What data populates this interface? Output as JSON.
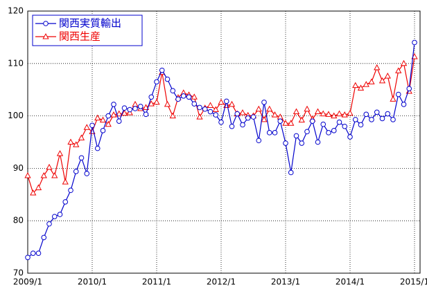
{
  "chart_data": {
    "type": "line",
    "categories": [
      "2009/1",
      null,
      null,
      null,
      null,
      null,
      null,
      null,
      null,
      null,
      null,
      null,
      "2010/1",
      null,
      null,
      null,
      null,
      null,
      null,
      null,
      null,
      null,
      null,
      null,
      "2011/1",
      null,
      null,
      null,
      null,
      null,
      null,
      null,
      null,
      null,
      null,
      null,
      "2012/1",
      null,
      null,
      null,
      null,
      null,
      null,
      null,
      null,
      null,
      null,
      null,
      "2013/1",
      null,
      null,
      null,
      null,
      null,
      null,
      null,
      null,
      null,
      null,
      null,
      "2014/1",
      null,
      null,
      null,
      null,
      null,
      null,
      null,
      null,
      null,
      null,
      null,
      "2015/1"
    ],
    "series": [
      {
        "name": "関西実質輸出",
        "color": "#0000cc",
        "marker": "circle",
        "values": [
          73,
          73.8,
          73.8,
          76.8,
          79.4,
          80.8,
          81.2,
          83.6,
          85.8,
          89.4,
          92,
          89,
          98.2,
          93.8,
          97.2,
          100,
          102.2,
          99,
          101.5,
          101.2,
          101.4,
          101.8,
          100.3,
          103.6,
          106.5,
          108.7,
          107,
          104.8,
          103.2,
          103.8,
          103.6,
          102.3,
          101.6,
          101.3,
          100.8,
          100.2,
          98.8,
          102.8,
          98,
          100.4,
          98.3,
          99.6,
          99.8,
          95.3,
          102.6,
          96.8,
          96.8,
          99,
          94.8,
          89.2,
          96.2,
          94.8,
          97,
          99,
          95,
          98.4,
          96.8,
          97.2,
          98.8,
          98,
          96,
          99.3,
          98.3,
          100.3,
          99.3,
          100.7,
          99.5,
          100.4,
          99.3,
          104.1,
          102.2,
          105.2,
          114
        ]
      },
      {
        "name": "関西生産",
        "color": "#ee0000",
        "marker": "triangle",
        "values": [
          88.6,
          85.3,
          86.3,
          88.6,
          90.2,
          88.6,
          92.8,
          87.4,
          95,
          94.5,
          95.8,
          97.8,
          97,
          99.6,
          99.2,
          98.4,
          100.2,
          100.4,
          100.5,
          100.6,
          102.2,
          101.4,
          101.6,
          102.3,
          102.6,
          108.3,
          102.2,
          100,
          103.5,
          104.4,
          104,
          103.6,
          99.8,
          101.5,
          102,
          101.2,
          102.6,
          102,
          102.2,
          100.4,
          100.6,
          100.1,
          100,
          101.3,
          99.3,
          101.3,
          100.2,
          99.8,
          98.6,
          98.6,
          100.8,
          99.2,
          101.3,
          99.4,
          100.8,
          100.4,
          100.3,
          100,
          100.4,
          100.2,
          100.5,
          105.8,
          105.3,
          106,
          106.5,
          109.2,
          106.7,
          107.6,
          103.2,
          108.6,
          110,
          104.7,
          111.3
        ]
      }
    ],
    "ylim": [
      70,
      120
    ],
    "yticks": [
      70,
      80,
      90,
      100,
      110,
      120
    ],
    "grid": true,
    "legend": "upper left"
  }
}
